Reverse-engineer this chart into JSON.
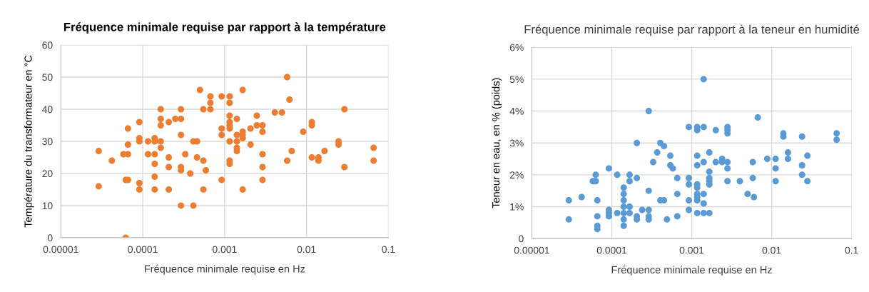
{
  "chart_data": [
    {
      "type": "scatter",
      "title": "Fréquence minimale requise par rapport à la température",
      "xlabel": "Fréquence minimale requise en Hz",
      "ylabel": "Température du transformateur en °C",
      "log": "x",
      "grid": true,
      "marker": "circle",
      "xlim": [
        1e-05,
        0.1
      ],
      "xticks": [
        {
          "value": 1e-05,
          "label": "0.00001"
        },
        {
          "value": 0.0001,
          "label": "0.0001"
        },
        {
          "value": 0.001,
          "label": "0.001"
        },
        {
          "value": 0.01,
          "label": "0.01"
        },
        {
          "value": 0.1,
          "label": "0.1"
        }
      ],
      "ylim": [
        0,
        60
      ],
      "yticks": [
        0,
        10,
        20,
        30,
        40,
        50,
        60
      ],
      "series": [
        {
          "color": "#ed7d31",
          "x": [
            2.9e-05,
            2.9e-05,
            4.2e-05,
            5.8e-05,
            6.6e-05,
            6.2e-05,
            6.2e-05,
            6.6e-05,
            6.6e-05,
            6.6e-05,
            9.1e-05,
            9.1e-05,
            9.1e-05,
            9.1e-05,
            9.1e-05,
            0.000116,
            0.000116,
            0.00014,
            0.00014,
            0.000166,
            0.00014,
            0.00014,
            0.00014,
            0.00014,
            0.000166,
            0.000166,
            0.000166,
            0.000166,
            0.000208,
            0.000208,
            0.000208,
            0.000208,
            0.00025,
            0.000293,
            0.000293,
            0.000293,
            0.000293,
            0.000293,
            0.000293,
            0.00033,
            0.00038,
            0.000415,
            0.000415,
            0.00046,
            0.00046,
            0.0005,
            0.00055,
            0.00055,
            0.00055,
            0.00059,
            0.00067,
            0.00067,
            0.00067,
            0.00092,
            0.00092,
            0.00092,
            0.00092,
            0.00115,
            0.00115,
            0.00166,
            0.00115,
            0.00115,
            0.00115,
            0.00115,
            0.00141,
            0.00115,
            0.00115,
            0.00115,
            0.00141,
            0.00141,
            0.00141,
            0.00141,
            0.00166,
            0.00166,
            0.00166,
            0.00166,
            0.00207,
            0.00207,
            0.00247,
            0.00247,
            0.0029,
            0.0029,
            0.0029,
            0.0029,
            0.0029,
            0.0041,
            0.005,
            0.0058,
            0.0062,
            0.0058,
            0.0066,
            0.0091,
            0.0116,
            0.0116,
            0.0116,
            0.014,
            0.014,
            0.0166,
            0.0246,
            0.0246,
            0.029,
            0.029,
            0.066,
            0.066
          ],
          "values": [
            27,
            16,
            24,
            26,
            26,
            0,
            18,
            18,
            29,
            34,
            36,
            17,
            15,
            31,
            30,
            30,
            26,
            31,
            30,
            30,
            26,
            23,
            19,
            15,
            40,
            37,
            35,
            28,
            36,
            25,
            22,
            15,
            37,
            37,
            40,
            32,
            22,
            21,
            10,
            26,
            20,
            10,
            30,
            30,
            25,
            46,
            40,
            24,
            15,
            21,
            44,
            42,
            40,
            44,
            34,
            32,
            18,
            44,
            42,
            46,
            38,
            36,
            35,
            34,
            37,
            30,
            24,
            23,
            32,
            30,
            28,
            27,
            33,
            31,
            32,
            15,
            34,
            29,
            38,
            35,
            35,
            33,
            26,
            22,
            18,
            39,
            39,
            50,
            43,
            24,
            27,
            33,
            36,
            35,
            25,
            25,
            24,
            27,
            30,
            29,
            40,
            22,
            28,
            24
          ]
        }
      ]
    },
    {
      "type": "scatter",
      "title": "Fréquence minimale requise par rapport à la teneur en humidité",
      "xlabel": "Fréquence minimale requise en Hz",
      "ylabel": "Teneur en eau, en % (poids)",
      "log": "x",
      "grid": true,
      "marker": "circle",
      "xlim": [
        1e-05,
        0.1
      ],
      "xticks": [
        {
          "value": 1e-05,
          "label": "0.00001"
        },
        {
          "value": 0.0001,
          "label": "0.0001"
        },
        {
          "value": 0.001,
          "label": "0.001"
        },
        {
          "value": 0.01,
          "label": "0.01"
        },
        {
          "value": 0.1,
          "label": "0.1"
        }
      ],
      "ylim": [
        0,
        6
      ],
      "yticks": [
        {
          "value": 0,
          "label": "0"
        },
        {
          "value": 1,
          "label": "1%"
        },
        {
          "value": 2,
          "label": "2%"
        },
        {
          "value": 3,
          "label": "3%"
        },
        {
          "value": 4,
          "label": "4%"
        },
        {
          "value": 5,
          "label": "5%"
        },
        {
          "value": 6,
          "label": "6%"
        }
      ],
      "series": [
        {
          "color": "#5b9bd5",
          "x": [
            2.9e-05,
            2.9e-05,
            4.2e-05,
            5.8e-05,
            6.3e-05,
            6.3e-05,
            6.6e-05,
            6.6e-05,
            6.6e-05,
            6.6e-05,
            9.2e-05,
            9.2e-05,
            9.2e-05,
            9.2e-05,
            0.000117,
            0.000117,
            0.000141,
            0.000141,
            0.000141,
            0.000141,
            0.000141,
            0.000141,
            0.000141,
            0.000167,
            0.000167,
            0.000167,
            0.000167,
            0.000206,
            0.000206,
            0.000206,
            0.000206,
            0.00024,
            0.00029,
            0.00029,
            0.00029,
            0.00029,
            0.00029,
            0.00033,
            0.00037,
            0.000405,
            0.00045,
            0.000405,
            0.00045,
            0.00049,
            0.00054,
            0.00054,
            0.00058,
            0.00066,
            0.00066,
            0.00066,
            0.00092,
            0.00092,
            0.00092,
            0.00092,
            0.00092,
            0.00117,
            0.00117,
            0.00117,
            0.00117,
            0.00117,
            0.00117,
            0.00117,
            0.00117,
            0.00117,
            0.00117,
            0.00141,
            0.00141,
            0.00141,
            0.00141,
            0.00141,
            0.00141,
            0.00166,
            0.00166,
            0.00166,
            0.00166,
            0.00166,
            0.00166,
            0.002,
            0.002,
            0.0024,
            0.0024,
            0.0028,
            0.0028,
            0.0028,
            0.0028,
            0.0028,
            0.0028,
            0.004,
            0.005,
            0.0058,
            0.0058,
            0.006,
            0.0067,
            0.0088,
            0.0112,
            0.0112,
            0.0112,
            0.014,
            0.014,
            0.016,
            0.016,
            0.024,
            0.024,
            0.024,
            0.028,
            0.028,
            0.065,
            0.065
          ],
          "values": [
            1.2,
            0.6,
            1.3,
            1.8,
            1.8,
            2.0,
            1.2,
            0.7,
            0.4,
            0.3,
            2.2,
            0.9,
            0.8,
            0.7,
            2.0,
            0.8,
            1.6,
            1.4,
            1.2,
            1.0,
            0.8,
            0.6,
            0.4,
            2.0,
            1.8,
            1.0,
            0.8,
            3.0,
            1.9,
            0.7,
            0.6,
            0.9,
            4.0,
            1.5,
            0.9,
            0.7,
            0.6,
            2.4,
            2.7,
            3.0,
            2.9,
            1.2,
            1.2,
            0.6,
            2.6,
            2.3,
            2.2,
            1.9,
            1.4,
            0.7,
            3.5,
            1.9,
            1.7,
            1.2,
            0.9,
            3.5,
            3.4,
            2.6,
            2.3,
            1.7,
            1.6,
            1.4,
            1.3,
            1.2,
            0.8,
            5.0,
            3.5,
            2.4,
            1.4,
            1.1,
            0.8,
            2.7,
            2.1,
            1.9,
            1.8,
            1.7,
            0.8,
            3.4,
            2.4,
            2.5,
            2.4,
            3.5,
            3.4,
            3.3,
            2.4,
            2.2,
            1.8,
            1.8,
            1.4,
            2.4,
            1.9,
            1.3,
            3.8,
            2.5,
            2.5,
            2.2,
            1.8,
            3.3,
            3.2,
            2.7,
            2.5,
            3.2,
            2.3,
            2.0,
            2.6,
            1.8,
            3.3,
            3.1
          ]
        }
      ]
    }
  ]
}
